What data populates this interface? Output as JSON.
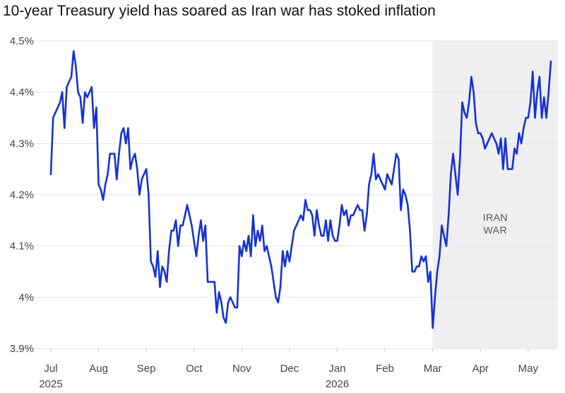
{
  "chart_data": {
    "type": "line",
    "title": "10-year Treasury yield has soared as Iran war has stoked inflation",
    "ylim": [
      3.9,
      4.5
    ],
    "y_ticks": [
      "4.5%",
      "4.4%",
      "4.3%",
      "4.2%",
      "4.1%",
      "4%",
      "3.9%"
    ],
    "y_tick_values": [
      4.5,
      4.4,
      4.3,
      4.2,
      4.1,
      4.0,
      3.9
    ],
    "x_ticks": [
      {
        "label": "Jul",
        "year": "2025",
        "index": 0
      },
      {
        "label": "Aug",
        "year": "",
        "index": 21
      },
      {
        "label": "Sep",
        "year": "",
        "index": 42
      },
      {
        "label": "Oct",
        "year": "",
        "index": 63
      },
      {
        "label": "Nov",
        "year": "",
        "index": 84
      },
      {
        "label": "Dec",
        "year": "",
        "index": 105
      },
      {
        "label": "Jan",
        "year": "2026",
        "index": 126
      },
      {
        "label": "Feb",
        "year": "",
        "index": 147
      },
      {
        "label": "Mar",
        "year": "",
        "index": 168
      },
      {
        "label": "Apr",
        "year": "",
        "index": 189
      },
      {
        "label": "May",
        "year": "",
        "index": 210
      }
    ],
    "shaded_region": {
      "label_lines": [
        "IRAN",
        "WAR"
      ],
      "start_index": 168,
      "end_index": 220
    },
    "grid": true,
    "series_color": "#1432d6",
    "shade_color": "#efeef1",
    "values": [
      4.24,
      4.35,
      4.36,
      4.37,
      4.38,
      4.4,
      4.33,
      4.41,
      4.42,
      4.43,
      4.48,
      4.45,
      4.4,
      4.39,
      4.34,
      4.4,
      4.39,
      4.4,
      4.41,
      4.33,
      4.37,
      4.22,
      4.21,
      4.19,
      4.22,
      4.24,
      4.28,
      4.28,
      4.28,
      4.23,
      4.28,
      4.32,
      4.33,
      4.3,
      4.33,
      4.25,
      4.27,
      4.28,
      4.25,
      4.2,
      4.23,
      4.24,
      4.25,
      4.2,
      4.07,
      4.06,
      4.04,
      4.09,
      4.02,
      4.06,
      4.05,
      4.03,
      4.09,
      4.13,
      4.13,
      4.15,
      4.1,
      4.14,
      4.14,
      4.16,
      4.18,
      4.16,
      4.14,
      4.11,
      4.08,
      4.12,
      4.15,
      4.11,
      4.14,
      4.03,
      4.03,
      4.03,
      4.03,
      3.97,
      4.01,
      3.99,
      3.96,
      3.95,
      3.99,
      4.0,
      3.99,
      3.98,
      3.98,
      4.1,
      4.08,
      4.11,
      4.09,
      4.12,
      4.08,
      4.16,
      4.1,
      4.13,
      4.11,
      4.14,
      4.09,
      4.1,
      4.08,
      4.06,
      4.03,
      4.0,
      3.99,
      4.02,
      4.09,
      4.06,
      4.09,
      4.07,
      4.1,
      4.13,
      4.14,
      4.15,
      4.16,
      4.15,
      4.19,
      4.17,
      4.17,
      4.16,
      4.12,
      4.17,
      4.14,
      4.12,
      4.12,
      4.15,
      4.11,
      4.15,
      4.12,
      4.11,
      4.11,
      4.14,
      4.18,
      4.16,
      4.17,
      4.14,
      4.16,
      4.16,
      4.17,
      4.18,
      4.17,
      4.17,
      4.13,
      4.16,
      4.22,
      4.24,
      4.28,
      4.23,
      4.24,
      4.23,
      4.22,
      4.21,
      4.24,
      4.23,
      4.22,
      4.25,
      4.28,
      4.27,
      4.17,
      4.21,
      4.2,
      4.18,
      4.13,
      4.05,
      4.05,
      4.06,
      4.06,
      4.08,
      4.07,
      4.08,
      4.03,
      4.05,
      3.94,
      4.0,
      4.05,
      4.08,
      4.14,
      4.12,
      4.1,
      4.16,
      4.24,
      4.28,
      4.24,
      4.2,
      4.27,
      4.38,
      4.36,
      4.35,
      4.38,
      4.43,
      4.4,
      4.34,
      4.32,
      4.32,
      4.31,
      4.29,
      4.3,
      4.31,
      4.32,
      4.31,
      4.3,
      4.28,
      4.31,
      4.25,
      4.31,
      4.25,
      4.25,
      4.25,
      4.29,
      4.28,
      4.32,
      4.3,
      4.33,
      4.35,
      4.35,
      4.38,
      4.44,
      4.35,
      4.4,
      4.43,
      4.35,
      4.39,
      4.35,
      4.4,
      4.46
    ]
  }
}
